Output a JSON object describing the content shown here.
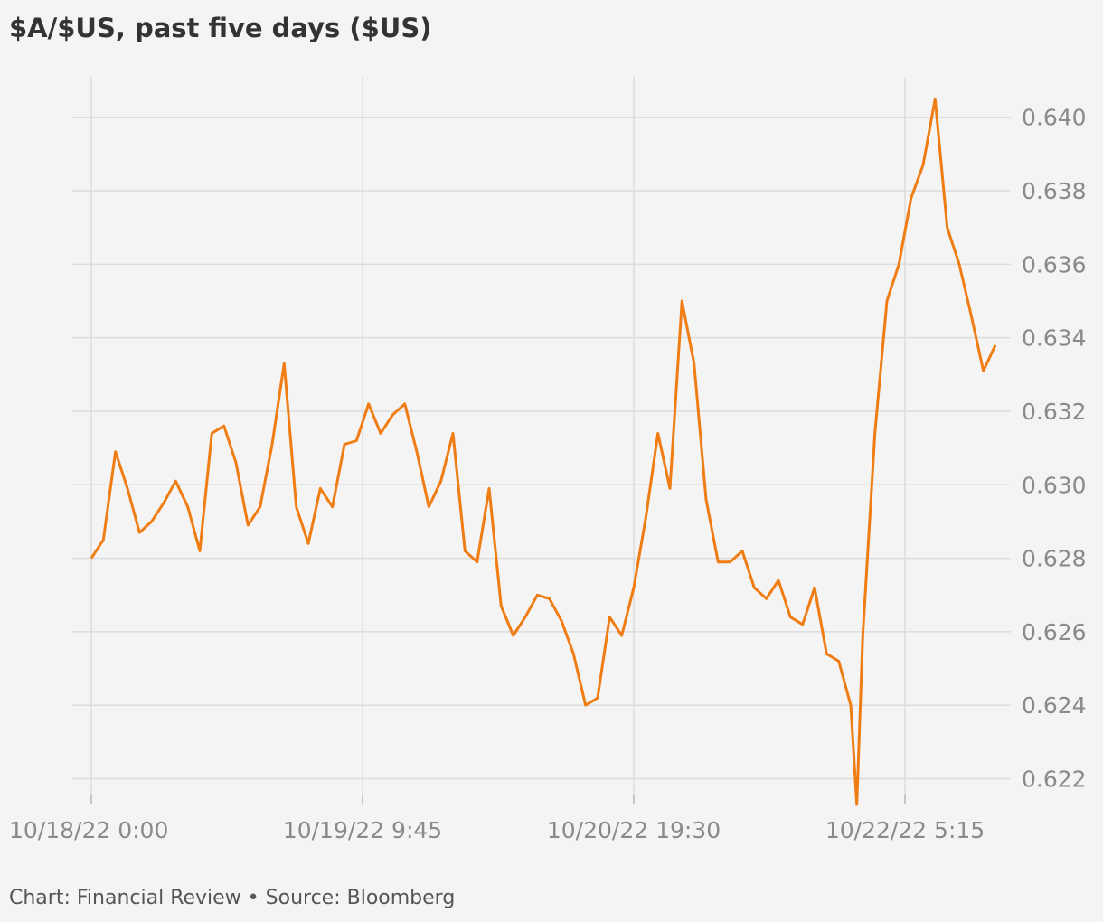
{
  "chart_data": {
    "type": "line",
    "title": "$A/$US, past five days ($US)",
    "footer": "Chart: Financial Review • Source: Bloomberg",
    "x": [
      "10/18/22 0:00",
      "10/18/22 1:30",
      "10/18/22 3:00",
      "10/18/22 4:30",
      "10/18/22 6:00",
      "10/18/22 7:30",
      "10/18/22 9:00",
      "10/18/22 10:30",
      "10/18/22 12:00",
      "10/18/22 13:30",
      "10/18/22 15:00",
      "10/18/22 16:30",
      "10/18/22 18:00",
      "10/18/22 19:30",
      "10/18/22 21:00",
      "10/18/22 22:30",
      "10/19/22 0:00",
      "10/19/22 1:30",
      "10/19/22 3:00",
      "10/19/22 4:30",
      "10/19/22 6:00",
      "10/19/22 7:30",
      "10/19/22 9:00",
      "10/19/22 10:30",
      "10/19/22 12:00",
      "10/19/22 13:30",
      "10/19/22 15:00",
      "10/19/22 16:30",
      "10/19/22 18:00",
      "10/19/22 19:30",
      "10/19/22 21:00",
      "10/19/22 22:30",
      "10/20/22 0:00",
      "10/20/22 1:30",
      "10/20/22 3:00",
      "10/20/22 4:30",
      "10/20/22 6:00",
      "10/20/22 7:30",
      "10/20/22 9:00",
      "10/20/22 10:30",
      "10/20/22 12:00",
      "10/20/22 13:30",
      "10/20/22 15:00",
      "10/20/22 16:30",
      "10/20/22 18:00",
      "10/20/22 19:30",
      "10/20/22 21:00",
      "10/20/22 22:30",
      "10/21/22 0:00",
      "10/21/22 1:30",
      "10/21/22 3:00",
      "10/21/22 4:30",
      "10/21/22 6:00",
      "10/21/22 7:30",
      "10/21/22 9:00",
      "10/21/22 10:30",
      "10/21/22 12:00",
      "10/21/22 13:30",
      "10/21/22 15:00",
      "10/21/22 16:30",
      "10/21/22 18:00",
      "10/21/22 19:30",
      "10/21/22 21:00",
      "10/21/22 22:30",
      "10/21/22 23:15",
      "10/22/22 0:00",
      "10/22/22 1:30",
      "10/22/22 3:00",
      "10/22/22 4:30",
      "10/22/22 6:00",
      "10/22/22 7:30",
      "10/22/22 9:00",
      "10/22/22 10:30",
      "10/22/22 12:00",
      "10/22/22 13:30",
      "10/22/22 15:00",
      "10/22/22 16:30"
    ],
    "series": [
      {
        "name": "$A/$US",
        "color": "#f07d14",
        "values": [
          0.628,
          0.6285,
          0.6309,
          0.6299,
          0.6287,
          0.629,
          0.6295,
          0.6301,
          0.6294,
          0.6282,
          0.6314,
          0.6316,
          0.6306,
          0.6289,
          0.6294,
          0.6311,
          0.6333,
          0.6294,
          0.6284,
          0.6299,
          0.6294,
          0.6311,
          0.6312,
          0.6322,
          0.6314,
          0.6319,
          0.6322,
          0.6309,
          0.6294,
          0.6301,
          0.6314,
          0.6282,
          0.6279,
          0.6299,
          0.6267,
          0.6259,
          0.6264,
          0.627,
          0.6269,
          0.6263,
          0.6254,
          0.624,
          0.6242,
          0.6264,
          0.6259,
          0.6272,
          0.6291,
          0.6314,
          0.6299,
          0.635,
          0.6333,
          0.6296,
          0.6279,
          0.6279,
          0.6282,
          0.6272,
          0.6269,
          0.6274,
          0.6264,
          0.6262,
          0.6272,
          0.6254,
          0.6252,
          0.624,
          0.6213,
          0.6259,
          0.6314,
          0.635,
          0.636,
          0.6378,
          0.6387,
          0.6405,
          0.637,
          0.636,
          0.6346,
          0.6331,
          0.6338
        ]
      }
    ],
    "xlim": [
      "10/18/22 0:00",
      "10/22/22 16:30"
    ],
    "xticks": [
      "10/18/22 0:00",
      "10/19/22 9:45",
      "10/20/22 19:30",
      "10/22/22 5:15"
    ],
    "ylim": [
      0.6213,
      0.6411
    ],
    "yticks": [
      0.622,
      0.624,
      0.626,
      0.628,
      {
        "value": 0.63,
        "label": "0.630"
      },
      0.632,
      0.634,
      0.636,
      0.638,
      {
        "value": 0.64,
        "label": "0.640"
      }
    ],
    "grid": true
  }
}
